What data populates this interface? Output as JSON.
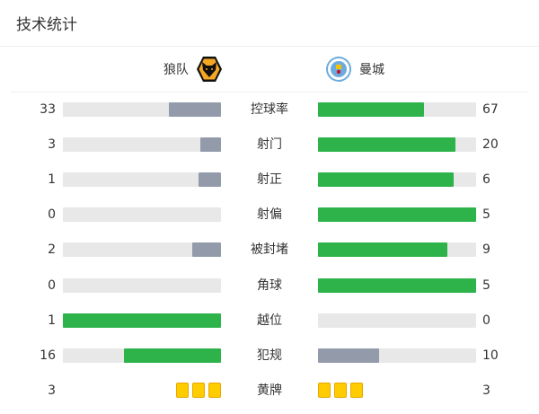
{
  "title": "技术统计",
  "home": {
    "name": "狼队",
    "logo": "wolves-crest"
  },
  "away": {
    "name": "曼城",
    "logo": "man-city-crest"
  },
  "colors": {
    "leader": "#2db34a",
    "trailer": "#939bab",
    "track": "#e8e8e8",
    "card": "#ffcc00"
  },
  "stats": [
    {
      "label": "控球率",
      "home": 33,
      "away": 67
    },
    {
      "label": "射门",
      "home": 3,
      "away": 20
    },
    {
      "label": "射正",
      "home": 1,
      "away": 6
    },
    {
      "label": "射偏",
      "home": 0,
      "away": 5
    },
    {
      "label": "被封堵",
      "home": 2,
      "away": 9
    },
    {
      "label": "角球",
      "home": 0,
      "away": 5
    },
    {
      "label": "越位",
      "home": 1,
      "away": 0
    },
    {
      "label": "犯规",
      "home": 16,
      "away": 10
    },
    {
      "label": "黄牌",
      "home": 3,
      "away": 3,
      "type": "cards"
    }
  ]
}
